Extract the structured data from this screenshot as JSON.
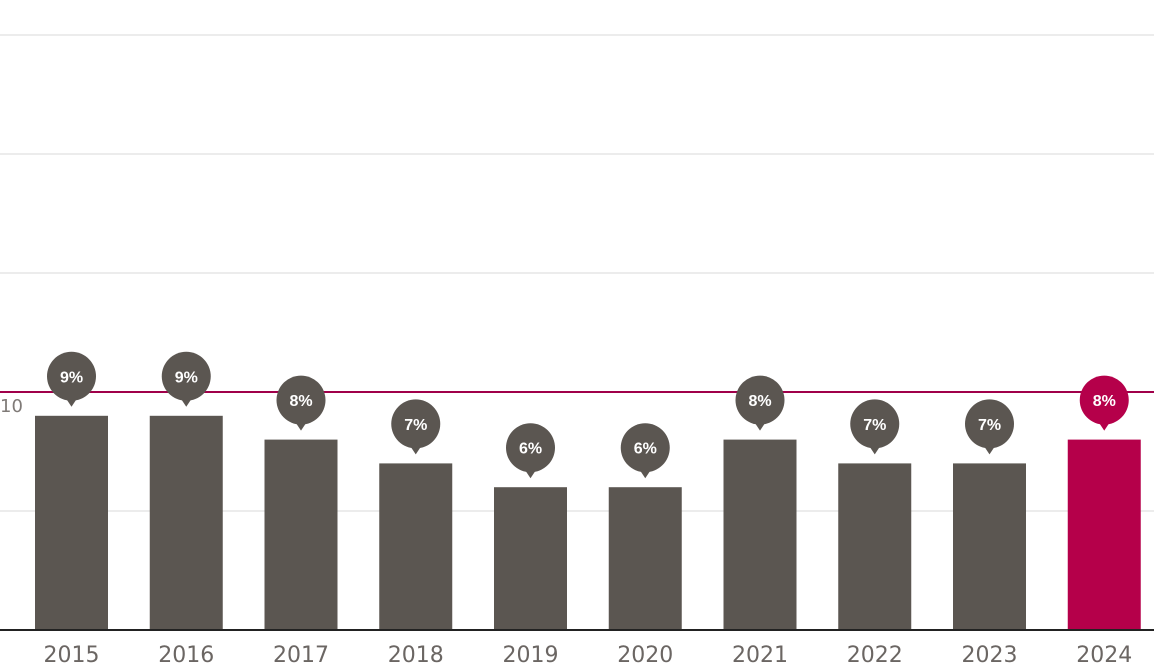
{
  "chart_data": {
    "type": "bar",
    "categories": [
      "2015",
      "2016",
      "2017",
      "2018",
      "2019",
      "2020",
      "2021",
      "2022",
      "2023",
      "2024"
    ],
    "values": [
      9,
      9,
      8,
      7,
      6,
      6,
      8,
      7,
      7,
      8
    ],
    "value_labels": [
      "9%",
      "9%",
      "8%",
      "7%",
      "6%",
      "6%",
      "8%",
      "7%",
      "7%",
      "8%"
    ],
    "y_ticks": [
      {
        "value": 10,
        "label": "10"
      }
    ],
    "reference_line": {
      "value": 10
    },
    "highlight_index": 9,
    "title": "",
    "xlabel": "",
    "ylabel": "",
    "ylim": [
      0,
      25
    ],
    "grid": true,
    "colors": {
      "bar": "#5b5651",
      "highlight": "#b5004a",
      "reference_line": "#a0004a",
      "grid": "#d8d8d8",
      "axis": "#222222"
    }
  }
}
